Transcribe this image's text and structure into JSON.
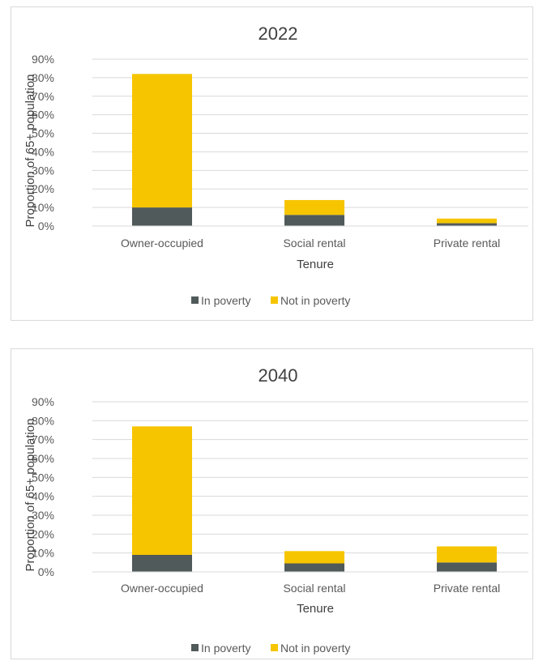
{
  "chart_data": [
    {
      "type": "bar",
      "stacked": true,
      "title": "2022",
      "xlabel": "Tenure",
      "ylabel": "Proportion of 65+ population",
      "categories": [
        "Owner-occupied",
        "Social rental",
        "Private rental"
      ],
      "series": [
        {
          "name": "In poverty",
          "values": [
            10,
            6,
            1.5
          ],
          "color": "#515a5a"
        },
        {
          "name": "Not in poverty",
          "values": [
            72,
            8,
            2.5
          ],
          "color": "#f6c500"
        }
      ],
      "ylim": [
        0,
        90
      ],
      "yticks": [
        "0%",
        "10%",
        "20%",
        "30%",
        "40%",
        "50%",
        "60%",
        "70%",
        "80%",
        "90%"
      ],
      "grid": true,
      "legend_position": "bottom"
    },
    {
      "type": "bar",
      "stacked": true,
      "title": "2040",
      "xlabel": "Tenure",
      "ylabel": "Proportion of 65+ population",
      "categories": [
        "Owner-occupied",
        "Social rental",
        "Private rental"
      ],
      "series": [
        {
          "name": "In poverty",
          "values": [
            9,
            4.5,
            5
          ],
          "color": "#515a5a"
        },
        {
          "name": "Not in poverty",
          "values": [
            68,
            6.5,
            8.5
          ],
          "color": "#f6c500"
        }
      ],
      "ylim": [
        0,
        90
      ],
      "yticks": [
        "0%",
        "10%",
        "20%",
        "30%",
        "40%",
        "50%",
        "60%",
        "70%",
        "80%",
        "90%"
      ],
      "grid": true,
      "legend_position": "bottom"
    }
  ]
}
